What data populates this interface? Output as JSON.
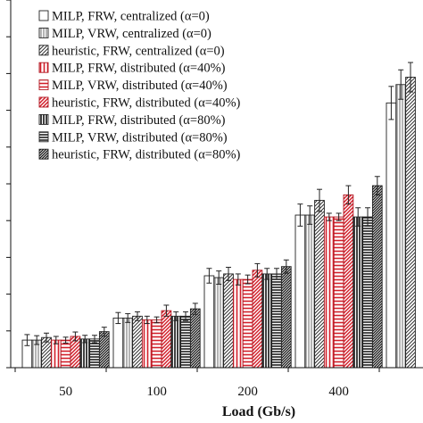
{
  "chart_data": {
    "type": "bar",
    "xlabel": "Load (Gb/s)",
    "ylabel": "",
    "categories": [
      "50",
      "100",
      "200",
      "400",
      ""
    ],
    "ylim": [
      0,
      10
    ],
    "grid": false,
    "legend_position": "top-left",
    "series": [
      {
        "name": "MILP, FRW, centralized (α=0)",
        "pattern": "plain",
        "values": [
          0.75,
          1.35,
          2.5,
          4.15,
          7.2
        ],
        "errors": [
          0.15,
          0.15,
          0.2,
          0.3,
          0.45
        ]
      },
      {
        "name": "MILP, VRW, centralized (α=0)",
        "pattern": "vertical",
        "values": [
          0.75,
          1.35,
          2.45,
          4.15,
          7.7
        ],
        "errors": [
          0.12,
          0.12,
          0.18,
          0.25,
          0.4
        ]
      },
      {
        "name": "heuristic, FRW, centralized (α=0)",
        "pattern": "diag",
        "values": [
          0.82,
          1.4,
          2.55,
          4.55,
          7.9
        ],
        "errors": [
          0.12,
          0.12,
          0.18,
          0.3,
          0.4
        ]
      },
      {
        "name": "MILP, FRW, distributed (α=40%)",
        "pattern": "plain-red",
        "values": [
          0.75,
          1.3,
          2.4,
          4.1,
          0
        ],
        "errors": [
          0.1,
          0.1,
          0.15,
          0.1,
          0
        ]
      },
      {
        "name": "MILP, VRW, distributed (α=40%)",
        "pattern": "horizontal-red",
        "values": [
          0.75,
          1.3,
          2.4,
          4.1,
          0
        ],
        "errors": [
          0.08,
          0.08,
          0.12,
          0.1,
          0
        ]
      },
      {
        "name": "heuristic, FRW, distributed (α=40%)",
        "pattern": "diag-red",
        "values": [
          0.85,
          1.55,
          2.65,
          4.7,
          0
        ],
        "errors": [
          0.12,
          0.15,
          0.18,
          0.25,
          0
        ]
      },
      {
        "name": "MILP, FRW, distributed (α=80%)",
        "pattern": "vertical-dense",
        "values": [
          0.78,
          1.4,
          2.55,
          4.1,
          0
        ],
        "errors": [
          0.1,
          0.12,
          0.15,
          0.25,
          0
        ]
      },
      {
        "name": "MILP, VRW, distributed (α=80%)",
        "pattern": "horizontal-dense",
        "values": [
          0.78,
          1.4,
          2.55,
          4.1,
          0
        ],
        "errors": [
          0.1,
          0.12,
          0.15,
          0.25,
          0
        ]
      },
      {
        "name": "heuristic, FRW, distributed (α=80%)",
        "pattern": "diag-dense",
        "values": [
          0.98,
          1.6,
          2.75,
          4.95,
          0
        ],
        "errors": [
          0.12,
          0.15,
          0.18,
          0.25,
          0
        ]
      }
    ]
  }
}
